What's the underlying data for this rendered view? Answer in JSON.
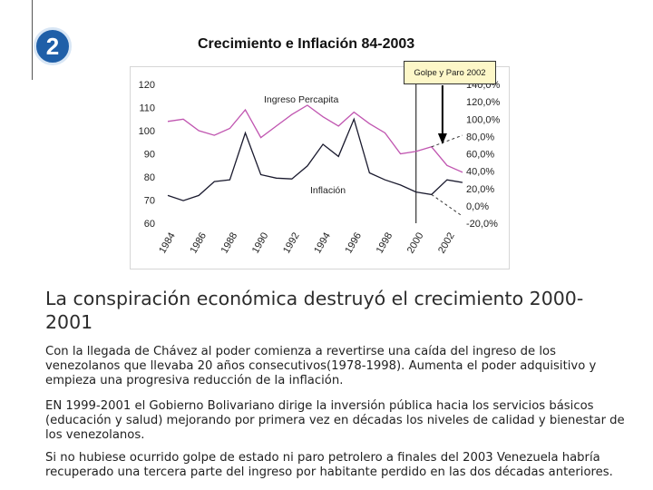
{
  "slide": {
    "number": "2"
  },
  "chart_data": {
    "type": "line",
    "title": "Crecimiento e Inflación 84-2003",
    "x_ticks": [
      "1984",
      "1986",
      "1988",
      "1990",
      "1992",
      "1994",
      "1996",
      "1998",
      "2000",
      "2002"
    ],
    "left_axis": {
      "ticks": [
        "120",
        "110",
        "100",
        "90",
        "80",
        "70",
        "60"
      ],
      "ylim": [
        60,
        120
      ]
    },
    "right_axis": {
      "ticks": [
        "140,0%",
        "120,0%",
        "100,0%",
        "80,0%",
        "60,0%",
        "40,0%",
        "20,0%",
        "0,0%",
        "-20,0%"
      ],
      "ylim": [
        -20,
        140
      ]
    },
    "series": [
      {
        "name": "Ingreso Percapita",
        "axis": "left",
        "x": [
          1984,
          1985,
          1986,
          1987,
          1988,
          1989,
          1990,
          1991,
          1992,
          1993,
          1994,
          1995,
          1996,
          1997,
          1998,
          1999,
          2000,
          2001,
          2002,
          2003
        ],
        "values": [
          104,
          105,
          100,
          98,
          101,
          109,
          97,
          102,
          107,
          111,
          106,
          102,
          108,
          103,
          99,
          90,
          91,
          93,
          85,
          82
        ],
        "projection": {
          "x": [
            2001,
            2003
          ],
          "values": [
            93,
            98
          ]
        }
      },
      {
        "name": "Inflación",
        "axis": "right",
        "x": [
          1984,
          1985,
          1986,
          1987,
          1988,
          1989,
          1990,
          1991,
          1992,
          1993,
          1994,
          1995,
          1996,
          1997,
          1998,
          1999,
          2000,
          2001,
          2002,
          2003
        ],
        "values": [
          12,
          6,
          12,
          28,
          30,
          84,
          36,
          32,
          31,
          46,
          71,
          57,
          100,
          38,
          30,
          24,
          16,
          13,
          30,
          27
        ],
        "projection": {
          "x": [
            2001,
            2003
          ],
          "values": [
            13,
            -12
          ]
        }
      }
    ],
    "annotations": {
      "golpe_label": "Golpe y Paro 2002",
      "marker_year": 2000,
      "arrow_year": 2002
    }
  },
  "heading": "La conspiración económica destruyó el crecimiento 2000-2001",
  "paragraphs": [
    "Con la llegada de Chávez al poder comienza a revertirse una caída del ingreso de los venezolanos que llevaba 20  años consecutivos(1978-1998). Aumenta el poder adquisitivo y empieza una progresiva reducción de la inflación.",
    "EN 1999-2001 el Gobierno Bolivariano dirige la inversión pública hacia los servicios básicos (educación y salud) mejorando por primera vez en décadas los niveles de calidad y bienestar de los venezolanos.",
    "Si no hubiese ocurrido golpe de estado ni paro petrolero a finales del 2003 Venezuela habría recuperado una tercera parte del ingreso por habitante perdido en las dos décadas anteriores."
  ],
  "colors": {
    "badge": "#1f5fa8",
    "ingreso": "#c055b0",
    "inflacion": "#1a1a2e"
  }
}
